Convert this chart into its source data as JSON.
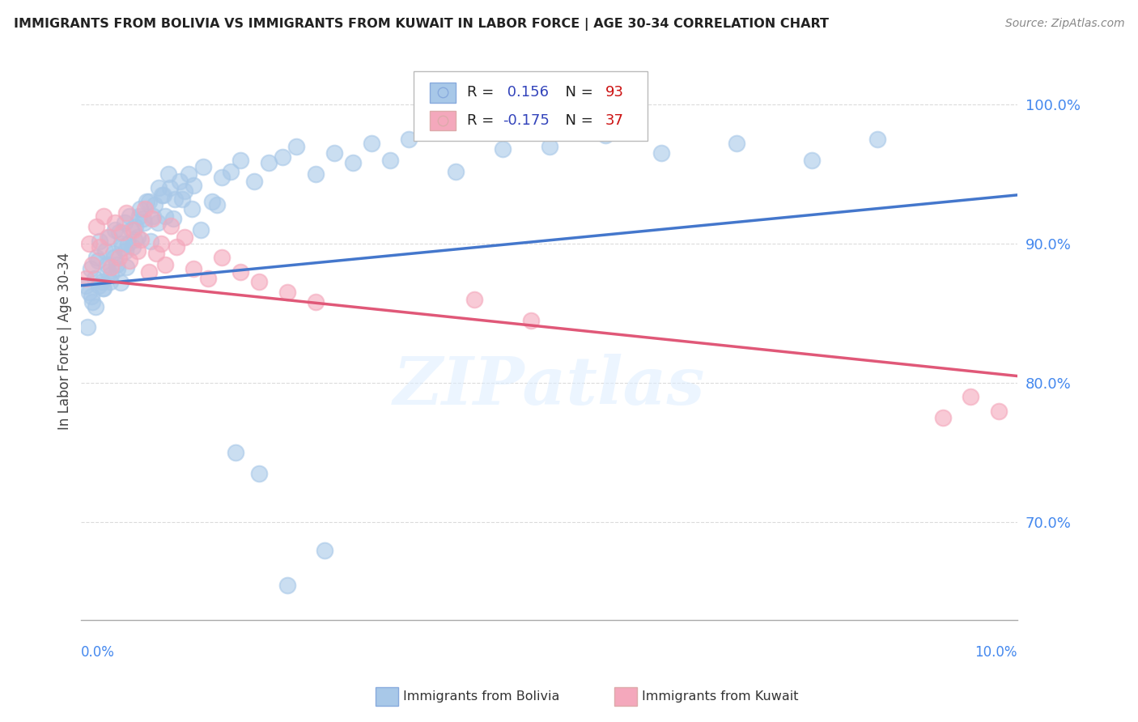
{
  "title": "IMMIGRANTS FROM BOLIVIA VS IMMIGRANTS FROM KUWAIT IN LABOR FORCE | AGE 30-34 CORRELATION CHART",
  "source": "Source: ZipAtlas.com",
  "ylabel": "In Labor Force | Age 30-34",
  "xlim": [
    0.0,
    10.0
  ],
  "ylim": [
    63.0,
    103.0
  ],
  "yticks": [
    70.0,
    80.0,
    90.0,
    100.0
  ],
  "bolivia_R": 0.156,
  "bolivia_N": 93,
  "kuwait_R": -0.175,
  "kuwait_N": 37,
  "bolivia_color": "#a8c8e8",
  "kuwait_color": "#f4a8bc",
  "bolivia_line_color": "#4477cc",
  "kuwait_line_color": "#e05878",
  "legend_R_color": "#3344bb",
  "legend_N_color": "#cc1111",
  "watermark": "ZIPatlas",
  "bolivia_x": [
    0.05,
    0.08,
    0.1,
    0.12,
    0.14,
    0.16,
    0.18,
    0.2,
    0.22,
    0.24,
    0.26,
    0.28,
    0.3,
    0.32,
    0.34,
    0.36,
    0.38,
    0.4,
    0.42,
    0.44,
    0.46,
    0.48,
    0.5,
    0.52,
    0.55,
    0.58,
    0.6,
    0.63,
    0.66,
    0.7,
    0.74,
    0.78,
    0.82,
    0.86,
    0.9,
    0.95,
    1.0,
    1.05,
    1.1,
    1.15,
    1.2,
    1.3,
    1.4,
    1.5,
    1.6,
    1.7,
    1.85,
    2.0,
    2.15,
    2.3,
    2.5,
    2.7,
    2.9,
    3.1,
    3.3,
    3.5,
    4.0,
    4.5,
    5.0,
    5.6,
    6.2,
    7.0,
    7.8,
    8.5,
    0.07,
    0.11,
    0.15,
    0.19,
    0.23,
    0.27,
    0.31,
    0.35,
    0.39,
    0.43,
    0.47,
    0.53,
    0.57,
    0.62,
    0.67,
    0.72,
    0.77,
    0.83,
    0.88,
    0.93,
    0.98,
    1.08,
    1.18,
    1.28,
    1.45,
    1.65,
    1.9,
    2.2,
    2.6
  ],
  "bolivia_y": [
    87.0,
    86.5,
    88.2,
    85.8,
    87.5,
    89.0,
    88.8,
    90.2,
    87.3,
    86.8,
    89.5,
    88.0,
    90.5,
    87.8,
    89.3,
    91.0,
    88.5,
    90.8,
    87.2,
    89.7,
    91.5,
    88.3,
    90.0,
    92.0,
    89.8,
    91.2,
    90.5,
    92.5,
    91.8,
    93.0,
    90.2,
    92.8,
    91.5,
    93.5,
    92.0,
    94.0,
    93.2,
    94.5,
    93.8,
    95.0,
    94.2,
    95.5,
    93.0,
    94.8,
    95.2,
    96.0,
    94.5,
    95.8,
    96.2,
    97.0,
    95.0,
    96.5,
    95.8,
    97.2,
    96.0,
    97.5,
    95.2,
    96.8,
    97.0,
    97.8,
    96.5,
    97.2,
    96.0,
    97.5,
    84.0,
    86.2,
    85.5,
    87.0,
    86.8,
    88.5,
    87.3,
    89.0,
    88.2,
    90.0,
    89.5,
    91.0,
    90.3,
    92.0,
    91.5,
    93.0,
    92.0,
    94.0,
    93.5,
    95.0,
    91.8,
    93.2,
    92.5,
    91.0,
    92.8,
    75.0,
    73.5,
    65.5,
    68.0
  ],
  "kuwait_x": [
    0.05,
    0.08,
    0.12,
    0.16,
    0.2,
    0.24,
    0.28,
    0.32,
    0.36,
    0.4,
    0.44,
    0.48,
    0.52,
    0.56,
    0.6,
    0.64,
    0.68,
    0.72,
    0.76,
    0.8,
    0.85,
    0.9,
    0.96,
    1.02,
    1.1,
    1.2,
    1.35,
    1.5,
    1.7,
    1.9,
    2.2,
    2.5,
    4.2,
    4.8,
    9.2,
    9.5,
    9.8
  ],
  "kuwait_y": [
    87.5,
    90.0,
    88.5,
    91.2,
    89.8,
    92.0,
    90.5,
    88.3,
    91.5,
    89.0,
    90.8,
    92.2,
    88.8,
    91.0,
    89.5,
    90.3,
    92.5,
    88.0,
    91.8,
    89.3,
    90.0,
    88.5,
    91.3,
    89.8,
    90.5,
    88.2,
    87.5,
    89.0,
    88.0,
    87.3,
    86.5,
    85.8,
    86.0,
    84.5,
    77.5,
    79.0,
    78.0
  ],
  "background_color": "#ffffff",
  "grid_color": "#cccccc"
}
